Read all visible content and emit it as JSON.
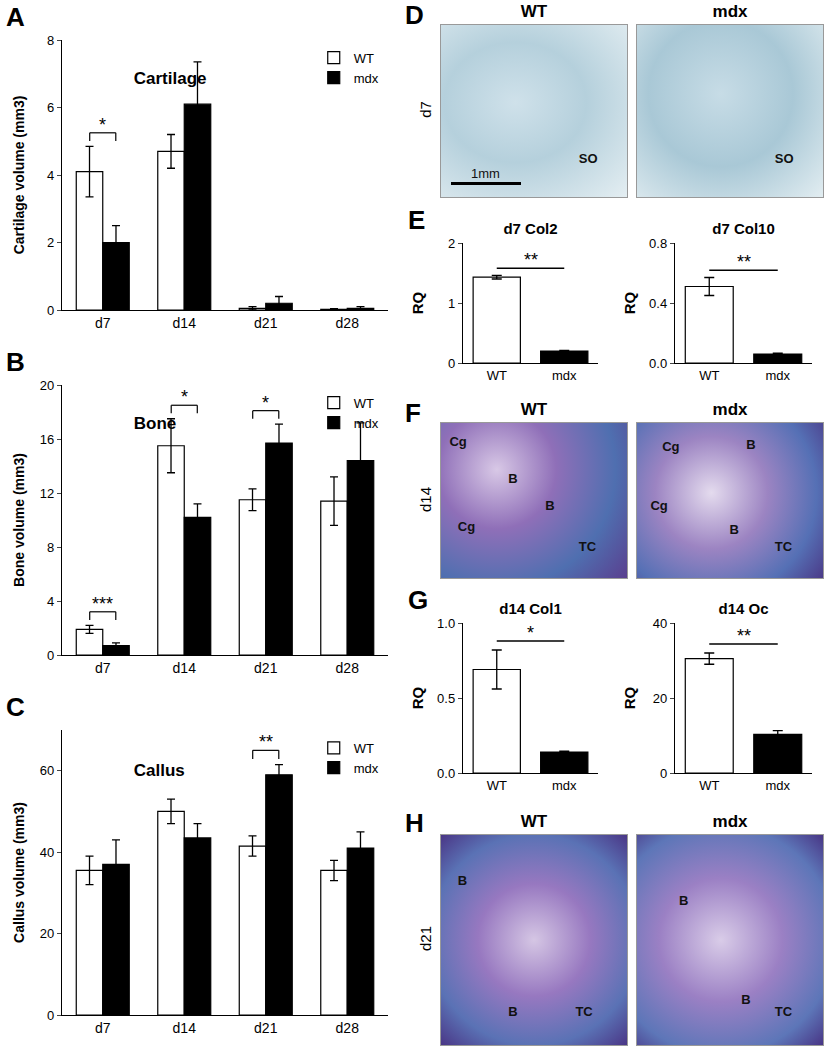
{
  "chart_data": [
    {
      "panel": "A",
      "type": "bar",
      "title": "Cartilage",
      "y_label": "Cartilage volume (mm3)",
      "categories": [
        "d7",
        "d14",
        "d21",
        "d28"
      ],
      "series": [
        {
          "name": "WT",
          "color": "#ffffff",
          "values": [
            4.1,
            4.7,
            0.05,
            0.02
          ],
          "errors": [
            0.75,
            0.5,
            0.05,
            0.02
          ]
        },
        {
          "name": "mdx",
          "color": "#000000",
          "values": [
            2.0,
            6.1,
            0.2,
            0.05
          ],
          "errors": [
            0.5,
            1.25,
            0.2,
            0.05
          ]
        }
      ],
      "ylim": [
        0,
        8
      ],
      "yticks": [
        0,
        2,
        4,
        6,
        8
      ],
      "legend": "top right",
      "significance": [
        {
          "category": "d7",
          "label": "*"
        }
      ]
    },
    {
      "panel": "B",
      "type": "bar",
      "title": "Bone",
      "y_label": "Bone volume (mm3)",
      "categories": [
        "d7",
        "d14",
        "d21",
        "d28"
      ],
      "series": [
        {
          "name": "WT",
          "color": "#ffffff",
          "values": [
            1.9,
            15.5,
            11.5,
            11.4
          ],
          "errors": [
            0.3,
            2.0,
            0.8,
            1.8
          ]
        },
        {
          "name": "mdx",
          "color": "#000000",
          "values": [
            0.7,
            10.2,
            15.7,
            14.4
          ],
          "errors": [
            0.2,
            1.0,
            1.4,
            2.8
          ]
        }
      ],
      "ylim": [
        0,
        20
      ],
      "yticks": [
        0,
        4,
        8,
        12,
        16,
        20
      ],
      "legend": "top right",
      "significance": [
        {
          "category": "d7",
          "label": "***"
        },
        {
          "category": "d14",
          "label": "*"
        },
        {
          "category": "d21",
          "label": "*"
        }
      ]
    },
    {
      "panel": "C",
      "type": "bar",
      "title": "Callus",
      "y_label": "Callus volume (mm3)",
      "categories": [
        "d7",
        "d14",
        "d21",
        "d28"
      ],
      "series": [
        {
          "name": "WT",
          "color": "#ffffff",
          "values": [
            35.5,
            50,
            41.5,
            35.5
          ],
          "errors": [
            3.5,
            3,
            2.5,
            2.5
          ]
        },
        {
          "name": "mdx",
          "color": "#000000",
          "values": [
            37,
            43.5,
            59,
            41
          ],
          "errors": [
            6,
            3.5,
            2.5,
            4
          ]
        }
      ],
      "ylim": [
        0,
        70
      ],
      "yticks": [
        0,
        20,
        40,
        60
      ],
      "legend": "top right",
      "significance": [
        {
          "category": "d21",
          "label": "**"
        }
      ]
    },
    {
      "panel": "E",
      "type": "bar",
      "title": "d7 Col2",
      "y_label": "RQ",
      "categories": [
        "WT",
        "mdx"
      ],
      "values": [
        1.43,
        0.2
      ],
      "errors": [
        0.03,
        0.01
      ],
      "colors": [
        "#ffffff",
        "#000000"
      ],
      "ylim": [
        0,
        2
      ],
      "yticks": [
        0,
        1,
        2
      ],
      "significance": [
        {
          "from": "WT",
          "to": "mdx",
          "label": "**"
        }
      ]
    },
    {
      "type": "bar",
      "title": "d7 Col10",
      "y_label": "RQ",
      "categories": [
        "WT",
        "mdx"
      ],
      "values": [
        0.51,
        0.06
      ],
      "errors": [
        0.06,
        0.005
      ],
      "colors": [
        "#ffffff",
        "#000000"
      ],
      "ylim": [
        0,
        0.8
      ],
      "yticks": [
        {
          "value": 0,
          "label": "0.0"
        },
        0.4,
        0.8
      ],
      "significance": [
        {
          "from": "WT",
          "to": "mdx",
          "label": "**"
        }
      ]
    },
    {
      "panel": "G",
      "type": "bar",
      "title": "d14 Col1",
      "y_label": "RQ",
      "categories": [
        "WT",
        "mdx"
      ],
      "values": [
        0.69,
        0.14
      ],
      "errors": [
        0.13,
        0.005
      ],
      "colors": [
        "#ffffff",
        "#000000"
      ],
      "ylim": [
        0,
        1
      ],
      "yticks": [
        {
          "value": 0,
          "label": "0.0"
        },
        0.5,
        {
          "value": 1,
          "label": "1.0"
        }
      ],
      "significance": [
        {
          "from": "WT",
          "to": "mdx",
          "label": "*"
        }
      ]
    },
    {
      "type": "bar",
      "title": "d14 Oc",
      "y_label": "RQ",
      "categories": [
        "WT",
        "mdx"
      ],
      "values": [
        30.5,
        10.3
      ],
      "errors": [
        1.5,
        1.0
      ],
      "colors": [
        "#ffffff",
        "#000000"
      ],
      "ylim": [
        0,
        40
      ],
      "yticks": [
        0,
        20,
        40
      ],
      "significance": [
        {
          "from": "WT",
          "to": "mdx",
          "label": "**"
        }
      ]
    }
  ],
  "image_panels": [
    {
      "panel": "D",
      "row_label": "d7",
      "images": [
        {
          "title": "WT",
          "labels": [
            "SO"
          ],
          "scale_bar": "1mm"
        },
        {
          "title": "mdx",
          "labels": [
            "SO"
          ]
        }
      ]
    },
    {
      "panel": "F",
      "row_label": "d14",
      "images": [
        {
          "title": "WT",
          "labels": [
            "Cg",
            "B",
            "Cg",
            "B",
            "TC"
          ]
        },
        {
          "title": "mdx",
          "labels": [
            "Cg",
            "B",
            "Cg",
            "B",
            "TC"
          ]
        }
      ]
    },
    {
      "panel": "H",
      "row_label": "d21",
      "images": [
        {
          "title": "WT",
          "labels": [
            "B",
            "B",
            "TC"
          ]
        },
        {
          "title": "mdx",
          "labels": [
            "B",
            "B",
            "TC"
          ]
        }
      ]
    }
  ]
}
